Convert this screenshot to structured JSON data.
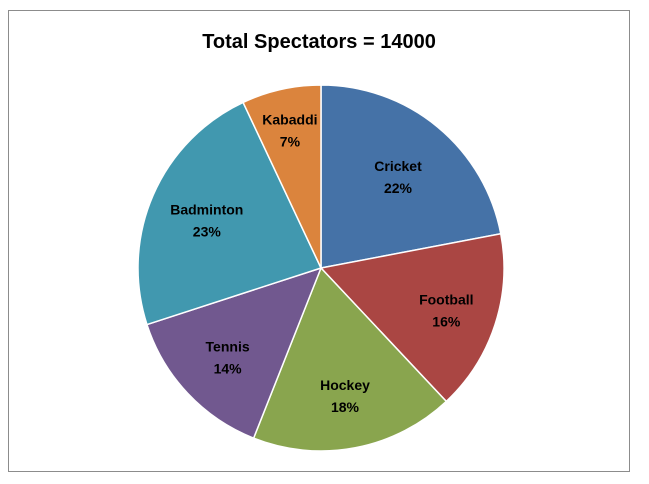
{
  "chart_data": {
    "type": "pie",
    "title": "Total Spectators = 14000",
    "start_angle_deg": 0,
    "direction": "clockwise",
    "slices": [
      {
        "label": "Cricket",
        "value": 22,
        "percent_label": "22%",
        "color": "#4572a7"
      },
      {
        "label": "Football",
        "value": 16,
        "percent_label": "16%",
        "color": "#aa4643"
      },
      {
        "label": "Hockey",
        "value": 18,
        "percent_label": "18%",
        "color": "#89a54e"
      },
      {
        "label": "Tennis",
        "value": 14,
        "percent_label": "14%",
        "color": "#71588f"
      },
      {
        "label": "Badminton",
        "value": 23,
        "percent_label": "23%",
        "color": "#4198af"
      },
      {
        "label": "Kabaddi",
        "value": 7,
        "percent_label": "7%",
        "color": "#db843d"
      }
    ],
    "legend": "none"
  }
}
